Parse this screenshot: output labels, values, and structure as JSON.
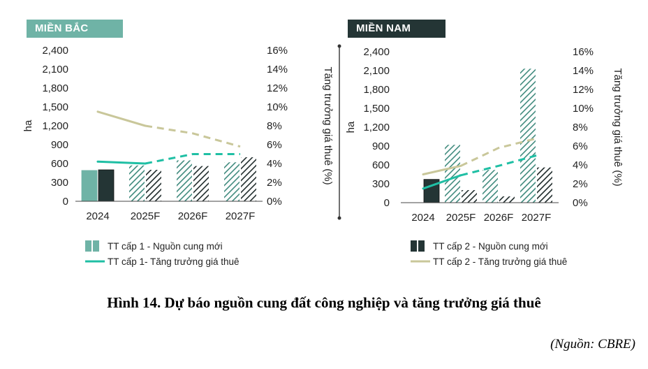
{
  "figure": {
    "caption": "Hình 14. Dự báo nguồn cung đất công nghiệp và tăng trưởng giá thuê",
    "source": "(Nguồn: CBRE)"
  },
  "colors": {
    "north_bar": "#6fb3a6",
    "north_line": "#1fbfa4",
    "south_bar": "#243535",
    "south_line": "#c9c79a",
    "hatch_green": "#3f8a7d",
    "hatch_dark": "#1e2a2a",
    "axis": "#444444",
    "tick_text": "#222222"
  },
  "chart_data": [
    {
      "type": "bar",
      "panel": "MIỀN BẮC",
      "categories": [
        "2024",
        "2025F",
        "2026F",
        "2027F"
      ],
      "ylabel": "ha",
      "y2label": "Tăng trưởng giá thuê (%)",
      "ylim": [
        0,
        2400
      ],
      "y2lim": [
        0,
        16
      ],
      "yticks": [
        "2,400",
        "2,100",
        "1,800",
        "1,500",
        "1,200",
        "900",
        "600",
        "300",
        "0"
      ],
      "y2ticks": [
        "16%",
        "14%",
        "12%",
        "10%",
        "8%",
        "6%",
        "4%",
        "2%",
        "0%"
      ],
      "series": [
        {
          "name": "TT cấp 1 - Nguồn cung mới",
          "kind": "bar",
          "group": "tier1",
          "values": [
            490,
            570,
            650,
            620
          ],
          "forecast_from": "2025F"
        },
        {
          "name": "TT cấp 2 - Nguồn cung mới",
          "kind": "bar",
          "group": "tier2",
          "values": [
            500,
            500,
            560,
            700
          ],
          "forecast_from": "2025F"
        },
        {
          "name": "TT cấp 1- Tăng trưởng giá thuê",
          "kind": "line",
          "group": "tier1",
          "values": [
            4.2,
            4.0,
            5.0,
            5.0
          ],
          "forecast_from": "2025F"
        },
        {
          "name": "TT cấp 2 - Tăng trưởng giá thuê",
          "kind": "line",
          "group": "tier2",
          "values": [
            9.5,
            8.0,
            7.2,
            5.8
          ],
          "forecast_from": "2025F"
        }
      ],
      "legend": [
        {
          "label": "TT cấp 1 - Nguồn cung mới",
          "symbol": "bar",
          "group": "tier1"
        },
        {
          "label": "TT cấp 1- Tăng trưởng giá thuê",
          "symbol": "line",
          "group": "tier1"
        }
      ]
    },
    {
      "type": "bar",
      "panel": "MIỀN NAM",
      "categories": [
        "2024",
        "2025F",
        "2026F",
        "2027F"
      ],
      "ylabel": "ha",
      "y2label": "Tăng trưởng giá thuê (%)",
      "ylim": [
        0,
        2400
      ],
      "y2lim": [
        0,
        16
      ],
      "yticks": [
        "2,400",
        "2,100",
        "1,800",
        "1,500",
        "1,200",
        "900",
        "600",
        "300",
        "0"
      ],
      "y2ticks": [
        "16%",
        "14%",
        "12%",
        "10%",
        "8%",
        "6%",
        "4%",
        "2%",
        "0%"
      ],
      "series": [
        {
          "name": "TT cấp 1 - Nguồn cung mới",
          "kind": "bar",
          "group": "tier1",
          "values": [
            0,
            920,
            520,
            2130
          ],
          "forecast_from": "2025F"
        },
        {
          "name": "TT cấp 2 - Nguồn cung mới",
          "kind": "bar",
          "group": "tier2",
          "values": [
            370,
            200,
            100,
            560
          ],
          "forecast_from": "2025F"
        },
        {
          "name": "TT cấp 1- Tăng trưởng giá thuê",
          "kind": "line",
          "group": "tier1",
          "values": [
            1.5,
            2.9,
            3.9,
            5.0
          ],
          "forecast_from": "2025F"
        },
        {
          "name": "TT cấp 2 - Tăng trưởng giá thuê",
          "kind": "line",
          "group": "tier2",
          "values": [
            3.0,
            3.9,
            5.8,
            6.8
          ],
          "forecast_from": "2025F"
        }
      ],
      "legend": [
        {
          "label": "TT cấp 2 - Nguồn cung mới",
          "symbol": "bar",
          "group": "tier2"
        },
        {
          "label": "TT cấp 2 - Tăng trưởng giá thuê",
          "symbol": "line",
          "group": "tier2"
        }
      ]
    }
  ]
}
